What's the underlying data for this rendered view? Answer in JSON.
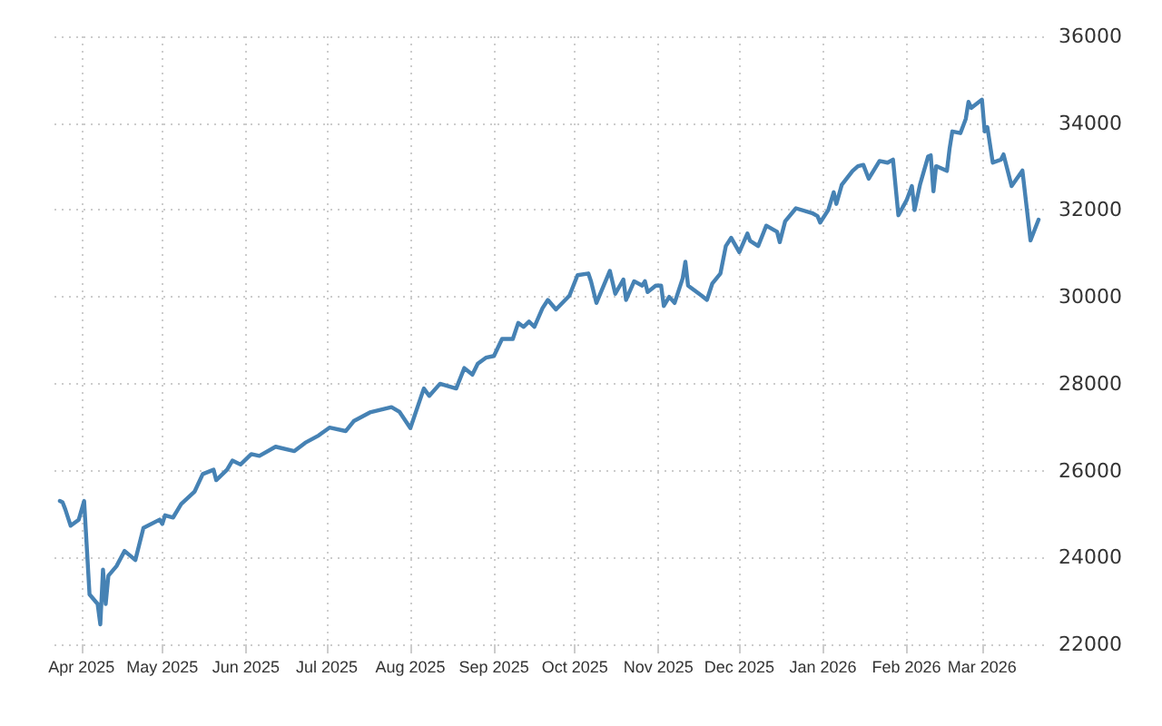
{
  "chart_data": {
    "type": "line",
    "x": [
      "2025-03-24",
      "2025-03-25",
      "2025-03-26",
      "2025-03-28",
      "2025-03-31",
      "2025-04-02",
      "2025-04-04",
      "2025-04-07",
      "2025-04-08",
      "2025-04-09",
      "2025-04-10",
      "2025-04-11",
      "2025-04-14",
      "2025-04-17",
      "2025-04-21",
      "2025-04-24",
      "2025-04-30",
      "2025-05-01",
      "2025-05-02",
      "2025-05-05",
      "2025-05-08",
      "2025-05-13",
      "2025-05-16",
      "2025-05-20",
      "2025-05-21",
      "2025-05-25",
      "2025-05-27",
      "2025-05-30",
      "2025-06-03",
      "2025-06-06",
      "2025-06-12",
      "2025-06-19",
      "2025-06-23",
      "2025-06-28",
      "2025-07-02",
      "2025-07-08",
      "2025-07-11",
      "2025-07-17",
      "2025-07-25",
      "2025-07-28",
      "2025-08-01",
      "2025-08-06",
      "2025-08-08",
      "2025-08-12",
      "2025-08-18",
      "2025-08-21",
      "2025-08-24",
      "2025-08-26",
      "2025-08-29",
      "2025-09-01",
      "2025-09-04",
      "2025-09-08",
      "2025-09-10",
      "2025-09-12",
      "2025-09-14",
      "2025-09-16",
      "2025-09-19",
      "2025-09-21",
      "2025-09-24",
      "2025-09-29",
      "2025-10-02",
      "2025-10-06",
      "2025-10-07",
      "2025-10-09",
      "2025-10-14",
      "2025-10-16",
      "2025-10-19",
      "2025-10-20",
      "2025-10-23",
      "2025-10-26",
      "2025-10-27",
      "2025-10-28",
      "2025-10-31",
      "2025-11-02",
      "2025-11-03",
      "2025-11-05",
      "2025-11-07",
      "2025-11-10",
      "2025-11-11",
      "2025-11-12",
      "2025-11-17",
      "2025-11-19",
      "2025-11-21",
      "2025-11-24",
      "2025-11-26",
      "2025-11-28",
      "2025-12-01",
      "2025-12-04",
      "2025-12-05",
      "2025-12-08",
      "2025-12-11",
      "2025-12-15",
      "2025-12-16",
      "2025-12-18",
      "2025-12-22",
      "2025-12-28",
      "2025-12-30",
      "2025-12-31",
      "2026-01-03",
      "2026-01-05",
      "2026-01-06",
      "2026-01-08",
      "2026-01-12",
      "2026-01-14",
      "2026-01-16",
      "2026-01-18",
      "2026-01-22",
      "2026-01-25",
      "2026-01-27",
      "2026-01-29",
      "2026-02-01",
      "2026-02-03",
      "2026-02-04",
      "2026-02-06",
      "2026-02-09",
      "2026-02-10",
      "2026-02-11",
      "2026-02-12",
      "2026-02-16",
      "2026-02-17",
      "2026-02-18",
      "2026-02-21",
      "2026-02-23",
      "2026-02-24",
      "2026-02-25",
      "2026-03-01",
      "2026-03-02",
      "2026-03-03",
      "2026-03-05",
      "2026-03-08",
      "2026-03-09",
      "2026-03-12",
      "2026-03-16",
      "2026-03-19",
      "2026-03-22"
    ],
    "series": [
      {
        "color": "#4682b4",
        "values": [
          25300,
          25270,
          25110,
          24730,
          24870,
          25300,
          23150,
          22930,
          22460,
          23720,
          22930,
          23580,
          23800,
          24150,
          23940,
          24680,
          24870,
          24770,
          24970,
          24920,
          25230,
          25520,
          25920,
          26020,
          25780,
          26020,
          26230,
          26140,
          26380,
          26340,
          26550,
          26450,
          26640,
          26810,
          26990,
          26910,
          27140,
          27340,
          27460,
          27350,
          26980,
          27890,
          27720,
          28000,
          27890,
          28360,
          28210,
          28460,
          28600,
          28640,
          29030,
          29030,
          29400,
          29310,
          29430,
          29310,
          29740,
          29930,
          29710,
          30030,
          30500,
          30540,
          30360,
          29860,
          30600,
          30070,
          30400,
          29930,
          30360,
          30260,
          30360,
          30110,
          30260,
          30260,
          29790,
          30000,
          29860,
          30430,
          30810,
          30260,
          30030,
          29930,
          30310,
          30540,
          31170,
          31360,
          31030,
          31460,
          31290,
          31170,
          31640,
          31500,
          31260,
          31740,
          32040,
          31930,
          31860,
          31710,
          32000,
          32410,
          32140,
          32580,
          32900,
          33010,
          33040,
          32720,
          33130,
          33090,
          33160,
          31880,
          32220,
          32550,
          32000,
          32580,
          33230,
          33260,
          32430,
          33010,
          32900,
          33420,
          33810,
          33770,
          34100,
          34490,
          34350,
          34540,
          33810,
          33910,
          33090,
          33160,
          33280,
          32550,
          32910,
          31300,
          31780
        ]
      }
    ],
    "xlim": [
      "2025-03-22",
      "2026-03-24"
    ],
    "xticks": [
      {
        "value": "2025-04",
        "label": "Apr 2025"
      },
      {
        "value": "2025-05",
        "label": "May 2025"
      },
      {
        "value": "2025-06",
        "label": "Jun 2025"
      },
      {
        "value": "2025-07",
        "label": "Jul 2025"
      },
      {
        "value": "2025-08",
        "label": "Aug 2025"
      },
      {
        "value": "2025-09",
        "label": "Sep 2025"
      },
      {
        "value": "2025-10",
        "label": "Oct 2025"
      },
      {
        "value": "2025-11",
        "label": "Nov 2025"
      },
      {
        "value": "2025-12",
        "label": "Dec 2025"
      },
      {
        "value": "2026-01",
        "label": "Jan 2026"
      },
      {
        "value": "2026-02",
        "label": "Feb 2026"
      },
      {
        "value": "2026-03",
        "label": "Mar 2026"
      }
    ],
    "ylim": [
      22000,
      36000
    ],
    "yticks": [
      22000,
      24000,
      26000,
      28000,
      30000,
      32000,
      34000,
      36000
    ],
    "grid": true,
    "marker": "none",
    "line_style": "solid"
  }
}
